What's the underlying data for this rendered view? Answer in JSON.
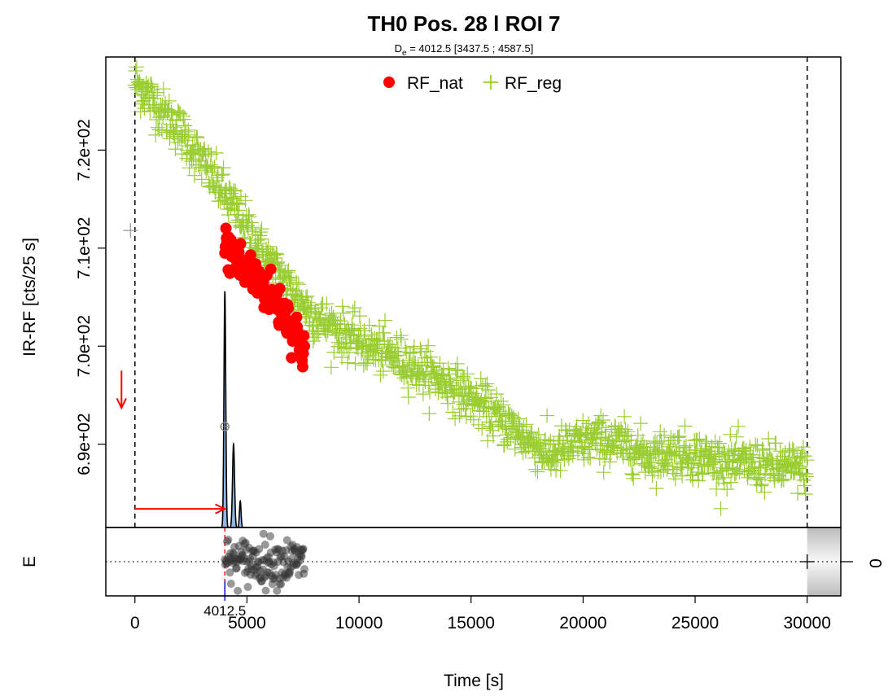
{
  "chart_data": {
    "type": "scatter",
    "title": "TH0 Pos. 28 l ROI 7",
    "subtitle": "D_e = 4012.5 [3437.5 ; 4587.5]",
    "subtitle_parts": {
      "prefix": "D",
      "sub": "e",
      "rest": " = 4012.5 [3437.5 ; 4587.5]"
    },
    "xlabel": "Time [s]",
    "ylabel": "IR-RF [cts/25 s]",
    "residual_label": "E",
    "residual_zero_label": "0",
    "xlim": [
      -1300,
      31500
    ],
    "ylim": [
      681.5,
      729.5
    ],
    "x_ticks": [
      0,
      5000,
      10000,
      15000,
      20000,
      25000,
      30000
    ],
    "x_tick_labels": [
      "0",
      "5000",
      "10000",
      "15000",
      "20000",
      "25000",
      "30000"
    ],
    "y_ticks": [
      690,
      700,
      710,
      720
    ],
    "y_tick_labels": [
      "6.9e+02",
      "7.0e+02",
      "7.1e+02",
      "7.2e+02"
    ],
    "legend": {
      "position": "top",
      "entries": [
        {
          "label": "RF_nat",
          "color": "#ff0000",
          "marker": "filled-circle"
        },
        {
          "label": "RF_reg",
          "color": "#9acd32",
          "marker": "plus"
        }
      ]
    },
    "de_value": 4012.5,
    "de_label": "4012.5",
    "de_interval": [
      3437.5,
      4587.5
    ],
    "vlines": [
      0,
      30000
    ],
    "series": [
      {
        "name": "RF_reg",
        "color": "#9acd32",
        "marker": "plus",
        "x_range": [
          0,
          30000
        ],
        "n_points": 1200,
        "trend": [
          [
            0,
            727
          ],
          [
            2000,
            722
          ],
          [
            4000,
            715.5
          ],
          [
            6000,
            708.5
          ],
          [
            8000,
            703
          ],
          [
            10000,
            700.4
          ],
          [
            12000,
            698.5
          ],
          [
            14000,
            696.2
          ],
          [
            16000,
            693
          ],
          [
            17500,
            690.5
          ],
          [
            18500,
            688.8
          ],
          [
            19500,
            689.8
          ],
          [
            20500,
            690.5
          ],
          [
            22000,
            689.8
          ],
          [
            23000,
            688.8
          ],
          [
            24000,
            689.2
          ],
          [
            25000,
            688.8
          ],
          [
            26000,
            688.3
          ],
          [
            27000,
            688
          ],
          [
            28000,
            687.8
          ],
          [
            30000,
            687.4
          ]
        ],
        "scatter_sd": 1.2
      },
      {
        "name": "RF_nat",
        "color": "#ff0000",
        "marker": "filled-circle",
        "x_range": [
          4012.5,
          7562.5
        ],
        "n_points": 143,
        "trend": [
          [
            4012.5,
            710.2
          ],
          [
            5000,
            707.6
          ],
          [
            6000,
            705.5
          ],
          [
            7000,
            702.2
          ],
          [
            7562.5,
            699.5
          ]
        ],
        "scatter_sd": 1.2
      }
    ],
    "grey_marker": {
      "x": -200,
      "y": 711.8,
      "color": "#999999"
    },
    "density_curve": {
      "fill": "#8fb8e8",
      "stroke": "#000000",
      "baseline_y": 681.5,
      "peaks": [
        {
          "x": 4012.5,
          "height": 24.1,
          "width": 80
        },
        {
          "x": 4400,
          "height": 8.5,
          "width": 90
        },
        {
          "x": 4700,
          "height": 2.7,
          "width": 70
        }
      ]
    },
    "median_circle": {
      "x": 4012.5,
      "y": 691.8
    },
    "arrows": [
      {
        "from": [
          -600,
          697.5
        ],
        "to": [
          -600,
          693.7
        ],
        "color": "#ff0000"
      },
      {
        "from": [
          0,
          683.4
        ],
        "to": [
          4012.5,
          683.4
        ],
        "color": "#ff0000"
      }
    ],
    "residuals": {
      "x_range": [
        4012.5,
        7562.5
      ],
      "n_points": 143,
      "color": "#333333",
      "ylim": [
        -1,
        1
      ]
    }
  }
}
